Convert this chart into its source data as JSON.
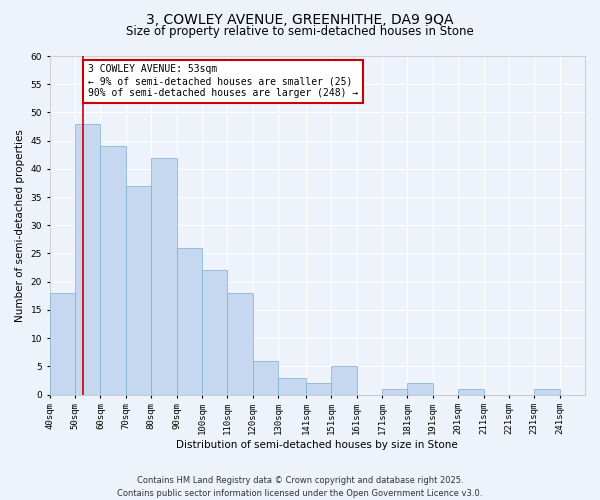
{
  "title": "3, COWLEY AVENUE, GREENHITHE, DA9 9QA",
  "subtitle": "Size of property relative to semi-detached houses in Stone",
  "xlabel": "Distribution of semi-detached houses by size in Stone",
  "ylabel": "Number of semi-detached properties",
  "bar_color": "#c5d8f0",
  "bar_edge_color": "#7bafd4",
  "background_color": "#eef2fa",
  "grid_color": "#ffffff",
  "annotation_box_color": "#cc0000",
  "vline_color": "#cc0000",
  "bins": [
    40,
    50,
    60,
    70,
    80,
    90,
    100,
    110,
    120,
    130,
    141,
    151,
    161,
    171,
    181,
    191,
    201,
    211,
    221,
    231,
    241,
    251
  ],
  "bin_labels": [
    "40sqm",
    "50sqm",
    "60sqm",
    "70sqm",
    "80sqm",
    "90sqm",
    "100sqm",
    "110sqm",
    "120sqm",
    "130sqm",
    "141sqm",
    "151sqm",
    "161sqm",
    "171sqm",
    "181sqm",
    "191sqm",
    "201sqm",
    "211sqm",
    "221sqm",
    "231sqm",
    "241sqm"
  ],
  "values": [
    18,
    48,
    44,
    37,
    42,
    26,
    22,
    18,
    6,
    3,
    2,
    5,
    0,
    1,
    2,
    0,
    1,
    0,
    0,
    1,
    0
  ],
  "ylim": [
    0,
    60
  ],
  "yticks": [
    0,
    5,
    10,
    15,
    20,
    25,
    30,
    35,
    40,
    45,
    50,
    55,
    60
  ],
  "vline_x": 53,
  "annotation_title": "3 COWLEY AVENUE: 53sqm",
  "annotation_line1": "← 9% of semi-detached houses are smaller (25)",
  "annotation_line2": "90% of semi-detached houses are larger (248) →",
  "footer_line1": "Contains HM Land Registry data © Crown copyright and database right 2025.",
  "footer_line2": "Contains public sector information licensed under the Open Government Licence v3.0.",
  "title_fontsize": 10,
  "subtitle_fontsize": 8.5,
  "axis_label_fontsize": 7.5,
  "tick_fontsize": 6.5,
  "annotation_fontsize": 7,
  "footer_fontsize": 6
}
